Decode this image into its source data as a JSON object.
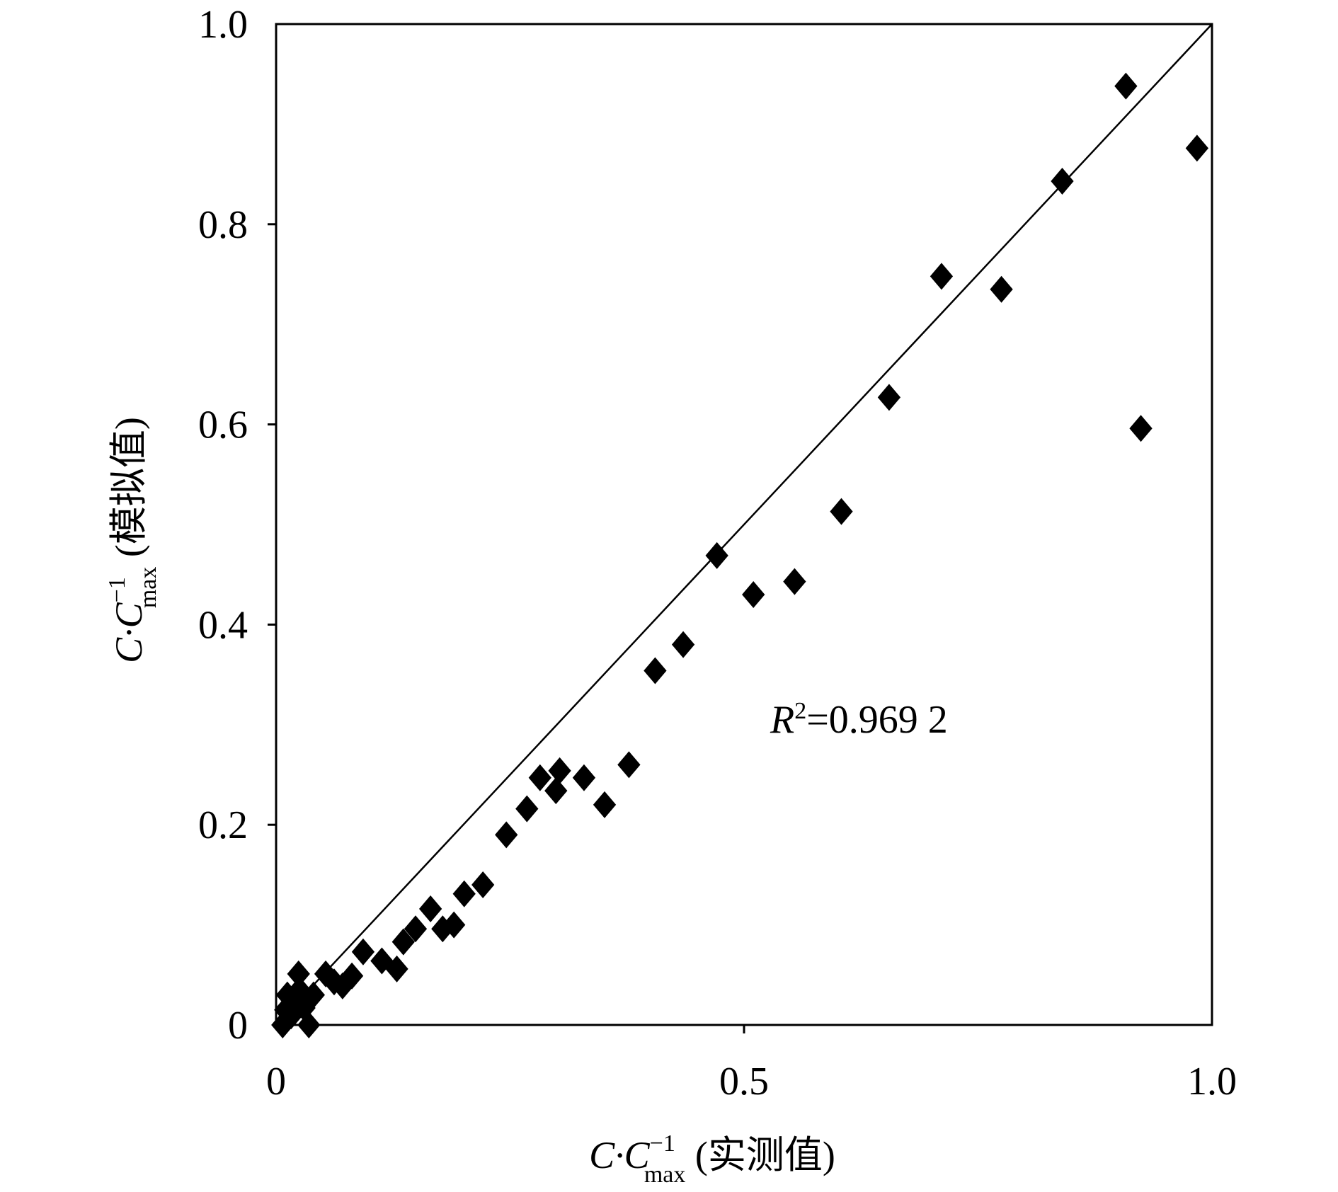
{
  "chart_data": {
    "type": "scatter",
    "title": "",
    "xlabel": "C·C_max^-1 (实测值)",
    "ylabel": "C·C_max^-1 (模拟值)",
    "xlabel_parts": {
      "base": "C·C",
      "sup": "−1",
      "sub": "max",
      "suffix": " (实测值)"
    },
    "ylabel_parts": {
      "base": "C·C",
      "sup": "−1",
      "sub": "max",
      "suffix": " (模拟值)"
    },
    "xlim": [
      0,
      1.0
    ],
    "ylim": [
      0,
      1.0
    ],
    "xticks": [
      {
        "v": 0,
        "label": "0"
      },
      {
        "v": 0.5,
        "label": "0.5"
      },
      {
        "v": 1.0,
        "label": "1.0"
      }
    ],
    "yticks": [
      {
        "v": 0,
        "label": "0"
      },
      {
        "v": 0.2,
        "label": "0.2"
      },
      {
        "v": 0.4,
        "label": "0.4"
      },
      {
        "v": 0.6,
        "label": "0.6"
      },
      {
        "v": 0.8,
        "label": "0.8"
      },
      {
        "v": 1.0,
        "label": "1.0"
      }
    ],
    "grid": false,
    "reference_line": {
      "type": "y=x",
      "from": [
        0,
        0
      ],
      "to": [
        1,
        1
      ]
    },
    "annotation": {
      "prefix": "R",
      "sup": "2",
      "text": "=0.969 2"
    },
    "marker": "diamond",
    "color": "#000000",
    "points": [
      [
        0.908,
        0.938
      ],
      [
        0.984,
        0.876
      ],
      [
        0.84,
        0.843
      ],
      [
        0.711,
        0.748
      ],
      [
        0.775,
        0.735
      ],
      [
        0.655,
        0.627
      ],
      [
        0.924,
        0.596
      ],
      [
        0.604,
        0.513
      ],
      [
        0.471,
        0.469
      ],
      [
        0.51,
        0.43
      ],
      [
        0.554,
        0.443
      ],
      [
        0.435,
        0.38
      ],
      [
        0.405,
        0.354
      ],
      [
        0.377,
        0.26
      ],
      [
        0.282,
        0.247
      ],
      [
        0.303,
        0.254
      ],
      [
        0.299,
        0.234
      ],
      [
        0.329,
        0.247
      ],
      [
        0.351,
        0.22
      ],
      [
        0.268,
        0.216
      ],
      [
        0.246,
        0.19
      ],
      [
        0.221,
        0.14
      ],
      [
        0.201,
        0.131
      ],
      [
        0.19,
        0.1
      ],
      [
        0.178,
        0.096
      ],
      [
        0.165,
        0.116
      ],
      [
        0.149,
        0.096
      ],
      [
        0.136,
        0.083
      ],
      [
        0.129,
        0.056
      ],
      [
        0.113,
        0.064
      ],
      [
        0.093,
        0.073
      ],
      [
        0.081,
        0.049
      ],
      [
        0.071,
        0.039
      ],
      [
        0.053,
        0.051
      ],
      [
        0.062,
        0.043
      ],
      [
        0.024,
        0.051
      ],
      [
        0.012,
        0.03
      ],
      [
        0.021,
        0.021
      ],
      [
        0.007,
        0.0
      ],
      [
        0.035,
        0.0
      ],
      [
        0.016,
        0.009
      ],
      [
        0.03,
        0.017
      ],
      [
        0.01,
        0.015
      ],
      [
        0.025,
        0.035
      ],
      [
        0.04,
        0.03
      ]
    ]
  }
}
